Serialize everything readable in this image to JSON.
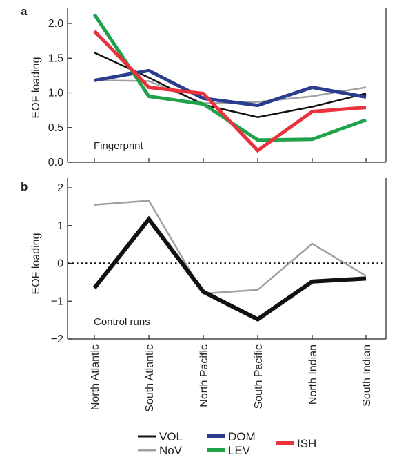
{
  "chart_data": [
    {
      "panel": "a",
      "type": "line",
      "annotation": "Fingerprint",
      "ylabel": "EOF loading",
      "ylim": [
        0,
        2.0
      ],
      "yticks": [
        "0.0",
        "0.5",
        "1.0",
        "1.5",
        "2.0"
      ],
      "ytick_values": [
        0,
        0.5,
        1.0,
        1.5,
        2.0
      ],
      "categories": [
        "North Atlantic",
        "South Atlantic",
        "North Pacific",
        "South Pacific",
        "North Indian",
        "South Indian"
      ],
      "series": [
        {
          "name": "NoV",
          "color": "#a0a0a0",
          "width": 2.5,
          "values": [
            1.18,
            1.17,
            0.85,
            0.87,
            0.95,
            1.08
          ]
        },
        {
          "name": "VOL",
          "color": "#111111",
          "width": 2.5,
          "values": [
            1.58,
            1.22,
            0.83,
            0.65,
            0.8,
            0.99
          ]
        },
        {
          "name": "DOM",
          "color": "#2b3d8f",
          "width": 5,
          "values": [
            1.18,
            1.32,
            0.92,
            0.82,
            1.08,
            0.94
          ]
        },
        {
          "name": "LEV",
          "color": "#1ea34a",
          "width": 5,
          "values": [
            2.13,
            0.95,
            0.84,
            0.32,
            0.33,
            0.61
          ]
        },
        {
          "name": "ISH",
          "color": "#e8323c",
          "width": 5,
          "values": [
            1.89,
            1.08,
            0.99,
            0.17,
            0.73,
            0.79
          ]
        }
      ]
    },
    {
      "panel": "b",
      "type": "line",
      "annotation": "Control runs",
      "ylabel": "EOF loading",
      "ylim": [
        -2,
        2
      ],
      "yticks": [
        "−2",
        "−1",
        "0",
        "1",
        "2"
      ],
      "ytick_values": [
        -2,
        -1,
        0,
        1,
        2
      ],
      "zero_line": "dotted",
      "categories": [
        "North Atlantic",
        "South Atlantic",
        "North Pacific",
        "South Pacific",
        "North Indian",
        "South Indian"
      ],
      "series": [
        {
          "name": "NoV",
          "color": "#a0a0a0",
          "width": 2.5,
          "values": [
            1.55,
            1.66,
            -0.8,
            -0.7,
            0.52,
            -0.33
          ]
        },
        {
          "name": "VOL",
          "color": "#111111",
          "width": 6,
          "values": [
            -0.65,
            1.17,
            -0.75,
            -1.48,
            -0.48,
            -0.4
          ]
        }
      ]
    }
  ],
  "legend": [
    {
      "name": "VOL",
      "color": "#111111"
    },
    {
      "name": "NoV",
      "color": "#a0a0a0"
    },
    {
      "name": "DOM",
      "color": "#2b3d8f"
    },
    {
      "name": "LEV",
      "color": "#1ea34a"
    },
    {
      "name": "ISH",
      "color": "#e8323c"
    }
  ]
}
